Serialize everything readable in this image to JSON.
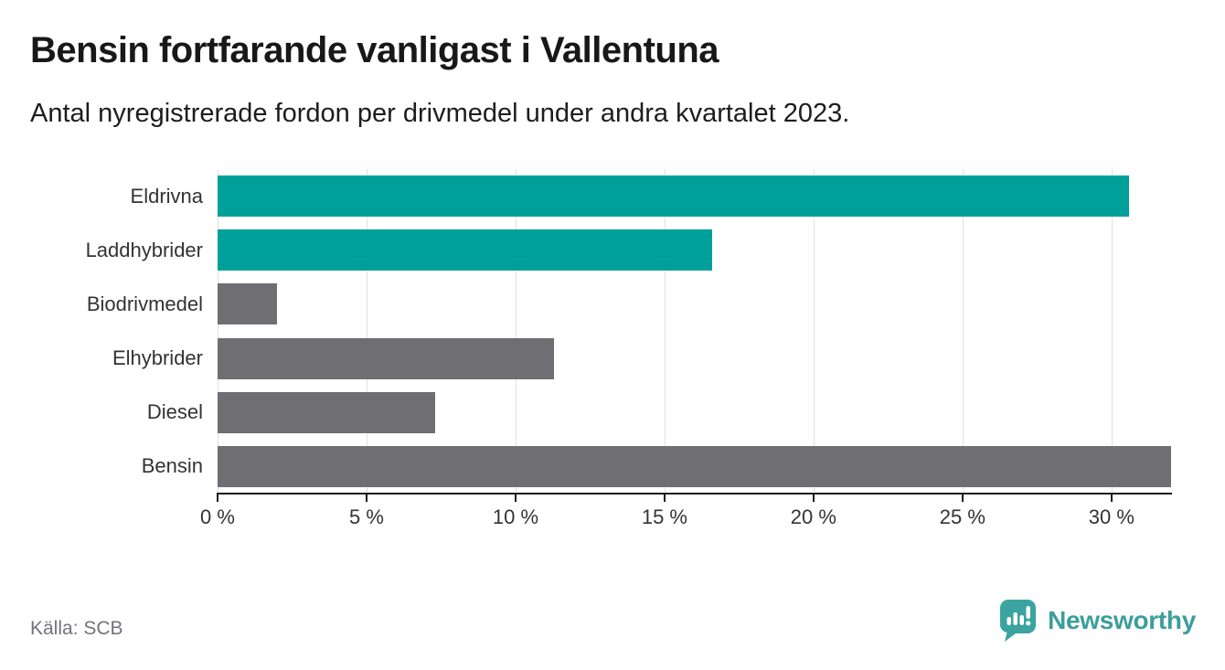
{
  "header": {
    "title": "Bensin fortfarande vanligast i Vallentuna",
    "subtitle": "Antal nyregistrerade fordon per drivmedel under andra kvartalet 2023."
  },
  "chart_data": {
    "type": "bar",
    "orientation": "horizontal",
    "title": "Bensin fortfarande vanligast i Vallentuna",
    "subtitle": "Antal nyregistrerade fordon per drivmedel under andra kvartalet 2023.",
    "categories": [
      "Eldrivna",
      "Laddhybrider",
      "Biodrivmedel",
      "Elhybrider",
      "Diesel",
      "Bensin"
    ],
    "values": [
      30.6,
      16.6,
      2.0,
      11.3,
      7.3,
      32.0
    ],
    "unit": "%",
    "bar_colors": [
      "#00a09a",
      "#00a09a",
      "#6e6e73",
      "#6e6e73",
      "#6e6e73",
      "#6e6e73"
    ],
    "xlabel": "",
    "ylabel": "",
    "xlim": [
      0,
      32
    ],
    "x_ticks": [
      0,
      5,
      10,
      15,
      20,
      25,
      30
    ],
    "x_tick_labels": [
      "0 %",
      "5 %",
      "10 %",
      "15 %",
      "20 %",
      "25 %",
      "30 %"
    ],
    "grid": true,
    "legend": "none"
  },
  "footer": {
    "source": "Källa: SCB",
    "brand": "Newsworthy"
  },
  "colors": {
    "accent_teal": "#00a09a",
    "bar_gray": "#6e6e73",
    "logo_teal": "#3ba4a0",
    "axis": "#1a1a1a",
    "gridline": "#e1e1e1",
    "title_text": "#181818",
    "label_text": "#333333",
    "source_text": "#73737c"
  }
}
